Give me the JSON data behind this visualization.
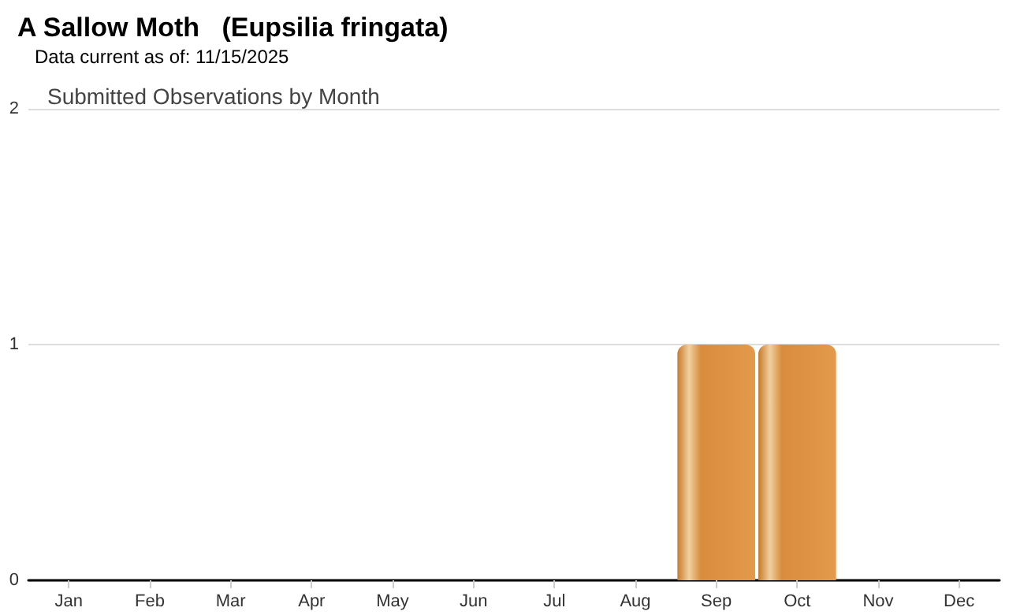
{
  "chart_data": {
    "type": "bar",
    "title": "A Sallow Moth   (Eupsilia fringata)",
    "subtitle": "Data current as of: 11/15/2025",
    "annotations": [
      "Submitted Observations by Month"
    ],
    "categories": [
      "Jan",
      "Feb",
      "Mar",
      "Apr",
      "May",
      "Jun",
      "Jul",
      "Aug",
      "Sep",
      "Oct",
      "Nov",
      "Dec"
    ],
    "values": [
      0,
      0,
      0,
      0,
      0,
      0,
      0,
      0,
      1,
      1,
      0,
      0
    ],
    "color": "#e39a4c",
    "ylim": [
      0,
      2
    ],
    "yticks": [
      0,
      1,
      2
    ],
    "grid": "y"
  }
}
